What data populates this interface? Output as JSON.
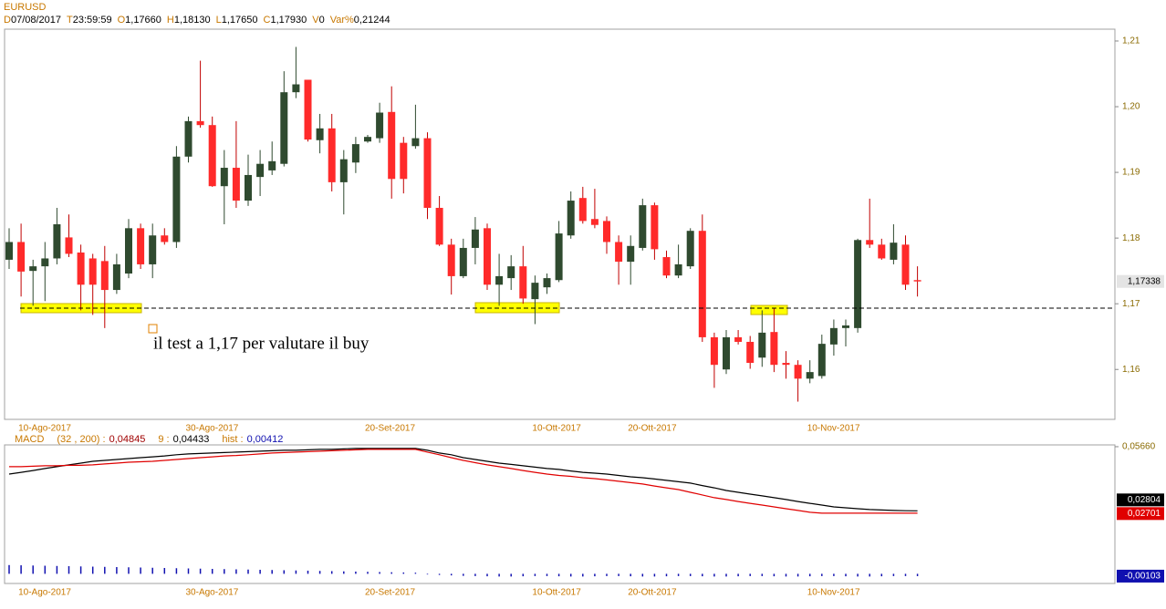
{
  "header": {
    "symbol": "EURUSD",
    "fields": [
      {
        "key": "D",
        "value": "07/08/2017"
      },
      {
        "key": "T",
        "value": "23:59:59"
      },
      {
        "key": "O",
        "value": "1,17660"
      },
      {
        "key": "H",
        "value": "1,18130"
      },
      {
        "key": "L",
        "value": "1,17650"
      },
      {
        "key": "C",
        "value": "1,17930"
      },
      {
        "key": "V",
        "value": "0"
      },
      {
        "key": "Var%",
        "value": "0,21244"
      }
    ]
  },
  "chart_data": [
    {
      "type": "candlestick",
      "categories": [
        null,
        "10-Ago-2017",
        null,
        null,
        null,
        null,
        null,
        null,
        null,
        null,
        null,
        null,
        null,
        null,
        null,
        "30-Ago-2017",
        null,
        null,
        null,
        null,
        null,
        null,
        null,
        null,
        null,
        null,
        null,
        null,
        null,
        null,
        "20-Set-2017",
        null,
        null,
        null,
        null,
        null,
        null,
        null,
        null,
        null,
        null,
        null,
        null,
        null,
        "10-Ott-2017",
        null,
        null,
        null,
        null,
        null,
        null,
        null,
        "20-Ott-2017",
        null,
        null,
        null,
        null,
        null,
        null,
        null,
        null,
        null,
        null,
        null,
        null,
        null,
        null,
        "10-Nov-2017",
        null,
        null,
        null,
        null,
        null,
        null,
        null,
        null,
        null
      ],
      "open": [
        1.1767,
        1.1794,
        1.175,
        1.1757,
        1.1769,
        1.1801,
        1.1778,
        1.1769,
        1.1765,
        1.1721,
        1.1746,
        1.1815,
        1.176,
        1.1804,
        1.1794,
        1.1924,
        1.1978,
        1.1972,
        1.1879,
        1.1907,
        1.1857,
        1.1893,
        1.1903,
        1.1913,
        1.2022,
        1.2041,
        1.1949,
        1.1967,
        1.1885,
        1.1915,
        1.1947,
        1.1952,
        1.1992,
        1.1945,
        1.194,
        1.1952,
        1.1846,
        1.179,
        1.1742,
        1.1785,
        1.1815,
        1.1729,
        1.1739,
        1.1757,
        1.1707,
        1.1725,
        1.1736,
        1.1804,
        1.1861,
        1.1829,
        1.1826,
        1.1794,
        1.1764,
        1.1785,
        1.185,
        1.1771,
        1.1743,
        1.1757,
        1.1811,
        1.1649,
        1.16,
        1.1649,
        1.1642,
        1.1618,
        1.1657,
        1.161,
        1.1607,
        1.1586,
        1.159,
        1.1638,
        1.1663,
        1.1663,
        1.1797,
        1.179,
        1.1767,
        1.179,
        1.1736
      ],
      "high": [
        1.1815,
        1.1822,
        1.1767,
        1.1794,
        1.1846,
        1.1836,
        1.179,
        1.1776,
        1.1788,
        1.1776,
        1.1829,
        1.1822,
        1.1822,
        1.1815,
        1.194,
        1.1985,
        1.207,
        1.1985,
        1.1934,
        1.1978,
        1.1927,
        1.1934,
        1.1947,
        1.2054,
        1.2091,
        1.2041,
        1.1989,
        1.1989,
        1.1934,
        1.1954,
        1.1957,
        1.2006,
        1.2031,
        1.1954,
        1.2003,
        1.1961,
        1.1864,
        1.1799,
        1.1799,
        1.1832,
        1.1822,
        1.1776,
        1.1774,
        1.1788,
        1.1743,
        1.1746,
        1.1826,
        1.1871,
        1.1878,
        1.1875,
        1.1833,
        1.1804,
        1.1804,
        1.186,
        1.1854,
        1.1781,
        1.179,
        1.1815,
        1.1836,
        1.1656,
        1.166,
        1.166,
        1.1651,
        1.169,
        1.1693,
        1.1628,
        1.1614,
        1.1614,
        1.1653,
        1.1676,
        1.1676,
        1.1799,
        1.186,
        1.1799,
        1.1821,
        1.1804,
        1.1757
      ],
      "low": [
        1.1753,
        1.1711,
        1.1697,
        1.1704,
        1.176,
        1.1771,
        1.169,
        1.1683,
        1.1663,
        1.1715,
        1.1739,
        1.1753,
        1.1739,
        1.179,
        1.1785,
        1.1915,
        1.1968,
        1.1878,
        1.1821,
        1.1846,
        1.1849,
        1.1864,
        1.1896,
        1.1909,
        1.2013,
        1.1947,
        1.1929,
        1.1871,
        1.1836,
        1.1899,
        1.1945,
        1.1945,
        1.186,
        1.1868,
        1.1936,
        1.1829,
        1.1788,
        1.1714,
        1.1739,
        1.176,
        1.1721,
        1.1697,
        1.1721,
        1.17,
        1.1669,
        1.1715,
        1.1733,
        1.1799,
        1.1822,
        1.1815,
        1.1776,
        1.1729,
        1.1729,
        1.1781,
        1.1767,
        1.1739,
        1.1739,
        1.1753,
        1.1642,
        1.1572,
        1.1593,
        1.1638,
        1.1601,
        1.1604,
        1.1596,
        1.1586,
        1.1551,
        1.1579,
        1.1586,
        1.1621,
        1.1635,
        1.1656,
        1.1785,
        1.1767,
        1.176,
        1.1721,
        1.1711
      ],
      "close": [
        1.1794,
        1.1749,
        1.1757,
        1.1769,
        1.1821,
        1.1776,
        1.1729,
        1.1729,
        1.1721,
        1.176,
        1.1815,
        1.176,
        1.1804,
        1.1794,
        1.1924,
        1.1978,
        1.1972,
        1.1879,
        1.1907,
        1.1857,
        1.1896,
        1.1913,
        1.1917,
        1.2022,
        1.2034,
        1.195,
        1.1967,
        1.1885,
        1.192,
        1.1943,
        1.1954,
        1.1991,
        1.189,
        1.189,
        1.1952,
        1.1846,
        1.179,
        1.1742,
        1.1785,
        1.1813,
        1.1729,
        1.1742,
        1.1757,
        1.1708,
        1.1732,
        1.1739,
        1.1807,
        1.1857,
        1.1826,
        1.182,
        1.1794,
        1.1764,
        1.1788,
        1.185,
        1.1783,
        1.1743,
        1.176,
        1.1811,
        1.1649,
        1.1607,
        1.1649,
        1.1642,
        1.161,
        1.1656,
        1.1607,
        1.1607,
        1.1586,
        1.1596,
        1.1639,
        1.1663,
        1.1667,
        1.1797,
        1.179,
        1.1769,
        1.1793,
        1.1729,
        1.1734
      ],
      "up_color": "#2f4a2f",
      "down_color": "#ff2a2a",
      "ylim": [
        1.1524,
        1.2118
      ],
      "yticks": [
        {
          "value": 1.16,
          "label": "1,16"
        },
        {
          "value": 1.17,
          "label": "1,17"
        },
        {
          "value": 1.18,
          "label": "1,18"
        },
        {
          "value": 1.19,
          "label": "1,19"
        },
        {
          "value": 1.2,
          "label": "1,20"
        },
        {
          "value": 1.21,
          "label": "1,21"
        }
      ],
      "last_label": "1,17338",
      "annotation": "il test a 1,17 per valutare il buy"
    },
    {
      "type": "line",
      "indicator": {
        "name": "MACD",
        "params": "(32 , 200) :",
        "macd": "0,04845",
        "signal_key": "9 :",
        "signal": "0,04433",
        "hist_key": "hist :",
        "hist": "0,00412"
      },
      "categories": [
        null,
        "10-Ago-2017",
        null,
        null,
        null,
        null,
        null,
        null,
        null,
        null,
        null,
        null,
        null,
        null,
        null,
        "30-Ago-2017",
        null,
        null,
        null,
        null,
        null,
        null,
        null,
        null,
        null,
        null,
        null,
        null,
        null,
        null,
        "20-Set-2017",
        null,
        null,
        null,
        null,
        null,
        null,
        null,
        null,
        null,
        null,
        null,
        null,
        null,
        "10-Ott-2017",
        null,
        null,
        null,
        null,
        null,
        null,
        null,
        "20-Ott-2017",
        null,
        null,
        null,
        null,
        null,
        null,
        null,
        null,
        null,
        null,
        null,
        null,
        null,
        null,
        "10-Nov-2017",
        null,
        null,
        null,
        null,
        null,
        null,
        null,
        null,
        null
      ],
      "ylim": [
        -0.0043,
        0.0574
      ],
      "yticks": [
        {
          "value": 0.0566,
          "label": "0,05660"
        }
      ],
      "series": [
        {
          "style": "line",
          "color": "#000000",
          "last_label": "0,02804",
          "values": [
            0.0444,
            0.0452,
            0.046,
            0.0469,
            0.0477,
            0.0485,
            0.0493,
            0.0501,
            0.0505,
            0.0509,
            0.0513,
            0.0517,
            0.0521,
            0.0525,
            0.053,
            0.0534,
            0.0536,
            0.0538,
            0.054,
            0.0542,
            0.0544,
            0.0546,
            0.0548,
            0.055,
            0.055,
            0.0552,
            0.0554,
            0.0554,
            0.0556,
            0.0558,
            0.0558,
            0.0558,
            0.0558,
            0.0558,
            0.0558,
            0.055,
            0.0538,
            0.053,
            0.0517,
            0.0509,
            0.0501,
            0.0493,
            0.0487,
            0.0481,
            0.0475,
            0.0469,
            0.0465,
            0.0458,
            0.0452,
            0.0448,
            0.0444,
            0.0438,
            0.0432,
            0.0428,
            0.0422,
            0.0416,
            0.041,
            0.0404,
            0.0393,
            0.0383,
            0.0371,
            0.0363,
            0.0355,
            0.0347,
            0.0339,
            0.0331,
            0.0322,
            0.0314,
            0.0306,
            0.0298,
            0.0294,
            0.029,
            0.0286,
            0.0284,
            0.0282,
            0.0281,
            0.02804
          ]
        },
        {
          "style": "line",
          "color": "#e00000",
          "last_label": "0,02701",
          "values": [
            0.0477,
            0.0477,
            0.0479,
            0.0481,
            0.0481,
            0.0483,
            0.0483,
            0.0485,
            0.0489,
            0.0493,
            0.0497,
            0.0499,
            0.0501,
            0.0505,
            0.0509,
            0.0513,
            0.0517,
            0.0521,
            0.0525,
            0.0527,
            0.053,
            0.0534,
            0.0538,
            0.054,
            0.0542,
            0.0544,
            0.0546,
            0.0548,
            0.055,
            0.0552,
            0.0554,
            0.0554,
            0.0554,
            0.0554,
            0.0554,
            0.0542,
            0.053,
            0.0517,
            0.0505,
            0.0495,
            0.0485,
            0.0477,
            0.0469,
            0.046,
            0.0452,
            0.0444,
            0.0438,
            0.0434,
            0.0428,
            0.0424,
            0.0418,
            0.0412,
            0.0406,
            0.04,
            0.0391,
            0.0383,
            0.0375,
            0.0363,
            0.0351,
            0.0339,
            0.0331,
            0.0322,
            0.0314,
            0.0306,
            0.0298,
            0.029,
            0.0282,
            0.0274,
            0.027,
            0.027,
            0.027,
            0.027,
            0.027,
            0.027,
            0.027,
            0.027,
            0.02701
          ]
        },
        {
          "style": "bar",
          "color": "#1010b0",
          "last_label": "-0,00103",
          "values": [
            0.0039,
            0.0038,
            0.0037,
            0.0036,
            0.0035,
            0.0034,
            0.0033,
            0.0032,
            0.0031,
            0.003,
            0.0029,
            0.0028,
            0.0027,
            0.0026,
            0.0025,
            0.0024,
            0.0023,
            0.0022,
            0.0021,
            0.002,
            0.0019,
            0.0018,
            0.0017,
            0.0016,
            0.0015,
            0.0014,
            0.0013,
            0.0012,
            0.0011,
            0.001,
            0.0009,
            0.0008,
            0.0007,
            0.0006,
            0.0005,
            -0.0003,
            -0.0005,
            -0.0007,
            -0.0009,
            -0.001,
            -0.0011,
            -0.0012,
            -0.0012,
            -0.0011,
            -0.001,
            -0.001,
            -0.0011,
            -0.0012,
            -0.0012,
            -0.0011,
            -0.001,
            -0.001,
            -0.0011,
            -0.0012,
            -0.0012,
            -0.0011,
            -0.001,
            -0.001,
            -0.0011,
            -0.0012,
            -0.0012,
            -0.0011,
            -0.001,
            -0.001,
            -0.0011,
            -0.0012,
            -0.0012,
            -0.0011,
            -0.001,
            -0.001,
            -0.0011,
            -0.0012,
            -0.0012,
            -0.0011,
            -0.001,
            -0.001,
            -0.00103
          ]
        }
      ]
    }
  ]
}
